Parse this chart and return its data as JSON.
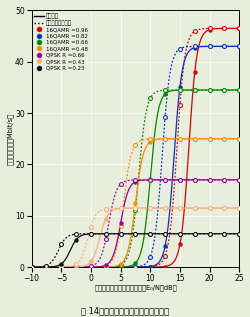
{
  "title_fig": "図 14　上りリンクスループット特性",
  "xlabel": "受信アンテナ当りの平均受信E₀/N（dB）",
  "ylabel": "スループット（Mbit/s）",
  "xlim": [
    -10,
    25
  ],
  "ylim": [
    0,
    50
  ],
  "xticks": [
    -10,
    -5,
    0,
    5,
    10,
    15,
    20,
    25
  ],
  "yticks": [
    0,
    10,
    20,
    30,
    40,
    50
  ],
  "background_color": "#e8eedc",
  "legend_exp": "実験特性",
  "legend_sim": "シミュレーション",
  "series": [
    {
      "label": "16QAMR =0.96",
      "color": "#dd0000",
      "max_throughput": 46.5,
      "x_mid_exp": 16.5,
      "x_mid_sim": 14.5,
      "steepness": 1.5
    },
    {
      "label": "16QAMR =0.82",
      "color": "#0033cc",
      "max_throughput": 43.0,
      "x_mid_exp": 14.0,
      "x_mid_sim": 12.0,
      "steepness": 1.5
    },
    {
      "label": "16QAMR =0.66",
      "color": "#008800",
      "max_throughput": 34.5,
      "x_mid_exp": 10.0,
      "x_mid_sim": 8.0,
      "steepness": 1.5
    },
    {
      "label": "16QAMR =0.48",
      "color": "#ff8800",
      "max_throughput": 25.0,
      "x_mid_exp": 7.5,
      "x_mid_sim": 5.5,
      "steepness": 1.5
    },
    {
      "label": "QPSK R =0.66",
      "color": "#990099",
      "max_throughput": 17.0,
      "x_mid_exp": 5.0,
      "x_mid_sim": 3.0,
      "steepness": 1.5
    },
    {
      "label": "QPSK R =0.43",
      "color": "#ffaa77",
      "max_throughput": 11.5,
      "x_mid_exp": 1.5,
      "x_mid_sim": -0.5,
      "steepness": 1.5
    },
    {
      "label": "QPSK R =0.23",
      "color": "#111111",
      "max_throughput": 6.5,
      "x_mid_exp": -3.5,
      "x_mid_sim": -5.5,
      "steepness": 1.5
    }
  ]
}
